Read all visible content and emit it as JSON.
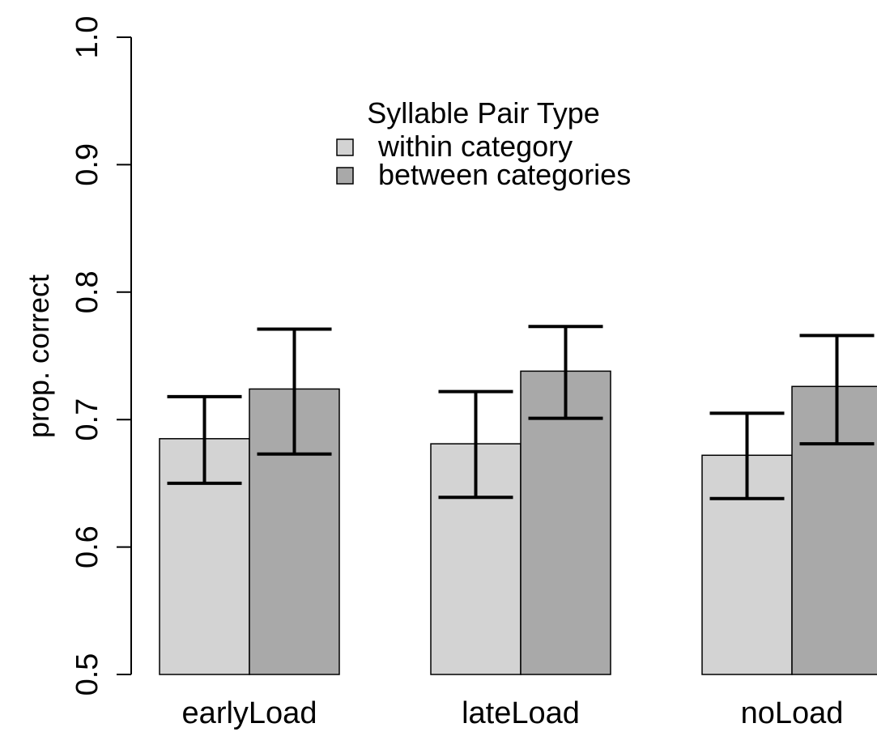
{
  "chart_data": {
    "type": "bar",
    "categories": [
      "earlyLoad",
      "lateLoad",
      "noLoad"
    ],
    "ylabel": "prop. correct",
    "xlabel": "",
    "ylim": [
      0.5,
      1.0
    ],
    "yticks": [
      0.5,
      0.6,
      0.7,
      0.8,
      0.9,
      1.0
    ],
    "ytick_labels": [
      "0.5",
      "0.6",
      "0.7",
      "0.8",
      "0.9",
      "1.0"
    ],
    "legend_title": "Syllable Pair Type",
    "legend_position": "top-center",
    "series": [
      {
        "name": "within category",
        "color": "#d3d3d3",
        "values": [
          0.685,
          0.681,
          0.672
        ],
        "err_low": [
          0.65,
          0.639,
          0.638
        ],
        "err_high": [
          0.718,
          0.722,
          0.705
        ]
      },
      {
        "name": "between categories",
        "color": "#a9a9a9",
        "values": [
          0.724,
          0.738,
          0.726
        ],
        "err_low": [
          0.673,
          0.701,
          0.681
        ],
        "err_high": [
          0.771,
          0.773,
          0.766
        ]
      }
    ]
  }
}
